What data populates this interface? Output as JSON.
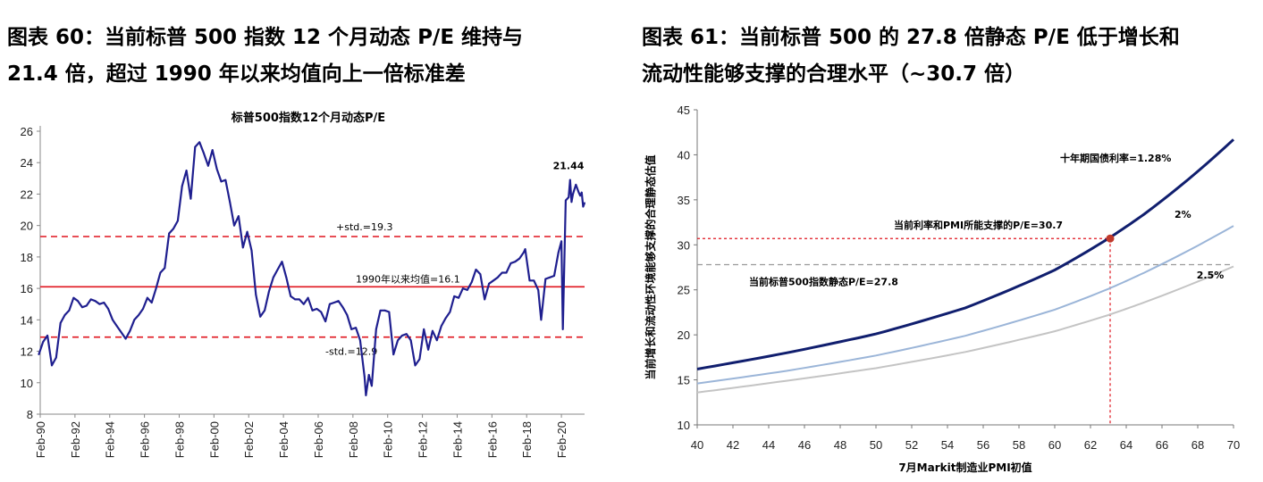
{
  "figures": [
    {
      "title_line1": "图表 60：当前标普 500 指数 12 个月动态 P/E 维持与",
      "title_line2": "21.4 倍，超过 1990 年以来均值向上一倍标准差"
    },
    {
      "title_line1": "图表 61：当前标普 500 的 27.8 倍静态 P/E 低于增长和",
      "title_line2": "流动性能够支撑的合理水平（~30.7 倍）"
    }
  ],
  "colors": {
    "pe_line": "#1f1f8f",
    "reference_red": "#e0141e",
    "curve_128": "#101e6e",
    "curve_2": "#9bb5d8",
    "curve_25": "#c4c4c4",
    "current_pe_dash": "#999999"
  },
  "chart_data": [
    {
      "type": "line",
      "title": "标普500指数12个月动态P/E",
      "xlabel": "",
      "ylabel": "",
      "ylim": [
        8,
        26
      ],
      "yticks": [
        8,
        10,
        12,
        14,
        16,
        18,
        20,
        22,
        24,
        26
      ],
      "xlim": [
        "1990-02",
        "2021-06"
      ],
      "xticks": [
        "Feb-90",
        "Feb-92",
        "Feb-94",
        "Feb-96",
        "Feb-98",
        "Feb-00",
        "Feb-02",
        "Feb-04",
        "Feb-06",
        "Feb-08",
        "Feb-10",
        "Feb-12",
        "Feb-14",
        "Feb-16",
        "Feb-18",
        "Feb-20"
      ],
      "grid": false,
      "series": [
        {
          "name": "",
          "points": [
            [
              "1990-01",
              11.8
            ],
            [
              "1990-04",
              12.6
            ],
            [
              "1990-07",
              13.0
            ],
            [
              "1990-10",
              11.1
            ],
            [
              "1991-01",
              11.6
            ],
            [
              "1991-04",
              13.8
            ],
            [
              "1991-07",
              14.3
            ],
            [
              "1991-10",
              14.6
            ],
            [
              "1992-01",
              15.4
            ],
            [
              "1992-04",
              15.2
            ],
            [
              "1992-07",
              14.8
            ],
            [
              "1992-10",
              14.9
            ],
            [
              "1993-01",
              15.3
            ],
            [
              "1993-04",
              15.2
            ],
            [
              "1993-07",
              15.0
            ],
            [
              "1993-10",
              15.1
            ],
            [
              "1994-01",
              14.7
            ],
            [
              "1994-04",
              14.0
            ],
            [
              "1994-07",
              13.6
            ],
            [
              "1994-10",
              13.2
            ],
            [
              "1995-01",
              12.8
            ],
            [
              "1995-04",
              13.3
            ],
            [
              "1995-07",
              14.0
            ],
            [
              "1995-10",
              14.3
            ],
            [
              "1996-01",
              14.7
            ],
            [
              "1996-04",
              15.4
            ],
            [
              "1996-07",
              15.1
            ],
            [
              "1996-10",
              16.0
            ],
            [
              "1997-01",
              17.0
            ],
            [
              "1997-04",
              17.3
            ],
            [
              "1997-07",
              19.5
            ],
            [
              "1997-10",
              19.8
            ],
            [
              "1998-01",
              20.3
            ],
            [
              "1998-04",
              22.5
            ],
            [
              "1998-07",
              23.5
            ],
            [
              "1998-10",
              21.7
            ],
            [
              "1999-01",
              25.0
            ],
            [
              "1999-04",
              25.3
            ],
            [
              "1999-07",
              24.6
            ],
            [
              "1999-10",
              23.8
            ],
            [
              "2000-01",
              24.8
            ],
            [
              "2000-04",
              23.6
            ],
            [
              "2000-07",
              22.8
            ],
            [
              "2000-10",
              22.9
            ],
            [
              "2001-01",
              21.5
            ],
            [
              "2001-04",
              20.0
            ],
            [
              "2001-07",
              20.6
            ],
            [
              "2001-10",
              18.6
            ],
            [
              "2002-01",
              19.6
            ],
            [
              "2002-04",
              18.4
            ],
            [
              "2002-07",
              15.6
            ],
            [
              "2002-10",
              14.2
            ],
            [
              "2003-01",
              14.6
            ],
            [
              "2003-04",
              15.8
            ],
            [
              "2003-07",
              16.7
            ],
            [
              "2003-10",
              17.2
            ],
            [
              "2004-01",
              17.7
            ],
            [
              "2004-04",
              16.7
            ],
            [
              "2004-07",
              15.5
            ],
            [
              "2004-10",
              15.3
            ],
            [
              "2005-01",
              15.3
            ],
            [
              "2005-04",
              15.0
            ],
            [
              "2005-07",
              15.4
            ],
            [
              "2005-10",
              14.6
            ],
            [
              "2006-01",
              14.7
            ],
            [
              "2006-04",
              14.5
            ],
            [
              "2006-07",
              13.9
            ],
            [
              "2006-10",
              15.0
            ],
            [
              "2007-01",
              15.1
            ],
            [
              "2007-04",
              15.2
            ],
            [
              "2007-07",
              14.8
            ],
            [
              "2007-10",
              14.3
            ],
            [
              "2008-01",
              13.4
            ],
            [
              "2008-04",
              13.5
            ],
            [
              "2008-07",
              12.7
            ],
            [
              "2008-10",
              10.4
            ],
            [
              "2008-11",
              9.2
            ],
            [
              "2009-01",
              10.5
            ],
            [
              "2009-03",
              9.8
            ],
            [
              "2009-06",
              13.4
            ],
            [
              "2009-09",
              14.6
            ],
            [
              "2009-12",
              14.6
            ],
            [
              "2010-03",
              14.5
            ],
            [
              "2010-06",
              11.8
            ],
            [
              "2010-09",
              12.7
            ],
            [
              "2010-12",
              13.0
            ],
            [
              "2011-03",
              13.1
            ],
            [
              "2011-06",
              12.7
            ],
            [
              "2011-09",
              11.1
            ],
            [
              "2011-12",
              11.5
            ],
            [
              "2012-03",
              13.4
            ],
            [
              "2012-06",
              12.1
            ],
            [
              "2012-09",
              13.3
            ],
            [
              "2012-12",
              12.7
            ],
            [
              "2013-03",
              13.6
            ],
            [
              "2013-06",
              14.1
            ],
            [
              "2013-09",
              14.5
            ],
            [
              "2013-12",
              15.5
            ],
            [
              "2014-03",
              15.4
            ],
            [
              "2014-06",
              16.0
            ],
            [
              "2014-09",
              15.9
            ],
            [
              "2014-12",
              16.4
            ],
            [
              "2015-03",
              17.2
            ],
            [
              "2015-06",
              16.9
            ],
            [
              "2015-09",
              15.3
            ],
            [
              "2015-12",
              16.3
            ],
            [
              "2016-03",
              16.5
            ],
            [
              "2016-06",
              16.7
            ],
            [
              "2016-09",
              17.0
            ],
            [
              "2016-12",
              17.0
            ],
            [
              "2017-03",
              17.6
            ],
            [
              "2017-06",
              17.7
            ],
            [
              "2017-09",
              17.9
            ],
            [
              "2017-12",
              18.3
            ],
            [
              "2018-01",
              18.5
            ],
            [
              "2018-04",
              16.5
            ],
            [
              "2018-07",
              16.5
            ],
            [
              "2018-10",
              15.9
            ],
            [
              "2018-12",
              14.0
            ],
            [
              "2019-03",
              16.6
            ],
            [
              "2019-06",
              16.7
            ],
            [
              "2019-09",
              16.8
            ],
            [
              "2019-12",
              18.3
            ],
            [
              "2020-02",
              19.0
            ],
            [
              "2020-03",
              13.4
            ],
            [
              "2020-05",
              21.6
            ],
            [
              "2020-07",
              21.8
            ],
            [
              "2020-08",
              22.9
            ],
            [
              "2020-09",
              21.5
            ],
            [
              "2020-10",
              22.0
            ],
            [
              "2020-12",
              22.6
            ],
            [
              "2021-02",
              22.1
            ],
            [
              "2021-03",
              21.9
            ],
            [
              "2021-04",
              22.1
            ],
            [
              "2021-05",
              21.2
            ],
            [
              "2021-06",
              21.44
            ]
          ]
        }
      ],
      "reference_lines": [
        {
          "y": 19.3,
          "label": "+std.=19.3",
          "style": "dashed"
        },
        {
          "y": 16.1,
          "label": "1990年以来均值=16.1",
          "style": "solid"
        },
        {
          "y": 12.9,
          "label": "-std.=12.9",
          "style": "dashed"
        }
      ],
      "annotations": [
        {
          "text": "21.44",
          "x": "2021-06",
          "y": 21.44
        }
      ]
    },
    {
      "type": "line",
      "title": "",
      "xlabel": "7月Markit制造业PMI初值",
      "ylabel": "当前增长和流动性环境能够支撑的合理静态估值",
      "xlim": [
        40,
        70
      ],
      "ylim": [
        10,
        45
      ],
      "xticks": [
        40,
        42,
        44,
        46,
        48,
        50,
        52,
        54,
        56,
        58,
        60,
        62,
        64,
        66,
        68,
        70
      ],
      "yticks": [
        10,
        15,
        20,
        25,
        30,
        35,
        40,
        45
      ],
      "grid": false,
      "series": [
        {
          "name": "十年期国债利率=1.28%",
          "x": [
            40,
            45,
            50,
            55,
            60,
            63,
            65,
            70
          ],
          "y": [
            16.2,
            18.0,
            20.1,
            23.0,
            27.2,
            30.7,
            33.4,
            41.7
          ]
        },
        {
          "name": "2%",
          "x": [
            40,
            45,
            50,
            55,
            60,
            63,
            65,
            70
          ],
          "y": [
            14.6,
            16.0,
            17.7,
            19.9,
            22.8,
            25.1,
            26.9,
            32.1
          ]
        },
        {
          "name": "2.5%",
          "x": [
            40,
            45,
            50,
            55,
            60,
            63,
            65,
            70
          ],
          "y": [
            13.6,
            14.9,
            16.3,
            18.1,
            20.4,
            22.2,
            23.6,
            27.6
          ]
        }
      ],
      "reference_lines": [
        {
          "y": 27.8,
          "label": "当前标普500指数静态P/E=27.8",
          "style": "dashed-gray"
        },
        {
          "y": 30.7,
          "label": "当前利率和PMI所能支撑的P/E=30.7",
          "style": "dotted-red",
          "x_end": 63.1
        }
      ],
      "marker": {
        "x": 63.1,
        "y": 30.7
      }
    }
  ]
}
